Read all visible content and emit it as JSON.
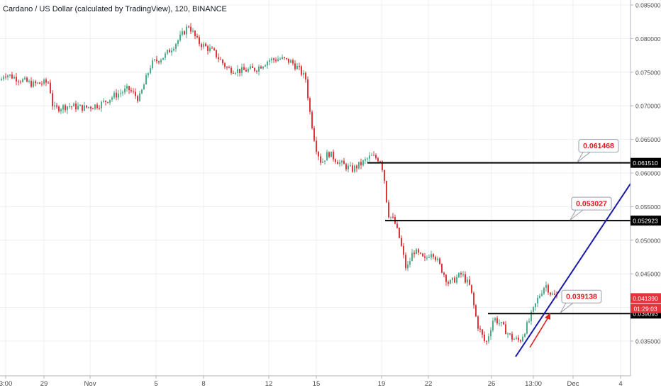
{
  "header": {
    "title": "Cardano / US Dollar (calculated by TradingView), 120, BINANCE"
  },
  "chart_data": {
    "type": "candlestick",
    "title": "Cardano / US Dollar (calculated by TradingView), 120, BINANCE",
    "xlabel": "",
    "ylabel": "",
    "ylim": [
      0.0315,
      0.0855
    ],
    "grid": true,
    "x_tick_labels": [
      "3:00",
      "29",
      "Nov",
      "5",
      "8",
      "12",
      "15",
      "19",
      "22",
      "26",
      "13:00",
      "Dec",
      "4"
    ],
    "y_tick_labels": [
      "0.085000",
      "0.080000",
      "0.075000",
      "0.070000",
      "0.065000",
      "0.060000",
      "0.055000",
      "0.050000",
      "0.045000",
      "0.040000",
      "0.035000"
    ],
    "price_path": [
      [
        0,
        0.0738
      ],
      [
        5,
        0.0748
      ],
      [
        20,
        0.0742
      ],
      [
        45,
        0.0732
      ],
      [
        68,
        0.0735
      ],
      [
        74,
        0.0695
      ],
      [
        95,
        0.07
      ],
      [
        118,
        0.0697
      ],
      [
        140,
        0.0702
      ],
      [
        160,
        0.0715
      ],
      [
        180,
        0.0725
      ],
      [
        195,
        0.071
      ],
      [
        212,
        0.0762
      ],
      [
        232,
        0.0775
      ],
      [
        252,
        0.08
      ],
      [
        265,
        0.082
      ],
      [
        278,
        0.0795
      ],
      [
        300,
        0.078
      ],
      [
        320,
        0.0755
      ],
      [
        340,
        0.0752
      ],
      [
        360,
        0.0755
      ],
      [
        378,
        0.0768
      ],
      [
        395,
        0.077
      ],
      [
        410,
        0.0765
      ],
      [
        420,
        0.0755
      ],
      [
        430,
        0.074
      ],
      [
        436,
        0.069
      ],
      [
        444,
        0.064
      ],
      [
        452,
        0.0615
      ],
      [
        462,
        0.063
      ],
      [
        478,
        0.0615
      ],
      [
        495,
        0.0605
      ],
      [
        510,
        0.0615
      ],
      [
        522,
        0.0625
      ],
      [
        535,
        0.062
      ],
      [
        540,
        0.06
      ],
      [
        546,
        0.054
      ],
      [
        555,
        0.0528
      ],
      [
        563,
        0.05
      ],
      [
        572,
        0.0455
      ],
      [
        582,
        0.0485
      ],
      [
        598,
        0.047
      ],
      [
        608,
        0.0485
      ],
      [
        620,
        0.046
      ],
      [
        632,
        0.0435
      ],
      [
        650,
        0.045
      ],
      [
        662,
        0.043
      ],
      [
        672,
        0.0375
      ],
      [
        684,
        0.0345
      ],
      [
        695,
        0.0385
      ],
      [
        705,
        0.0375
      ],
      [
        720,
        0.0355
      ],
      [
        732,
        0.035
      ],
      [
        745,
        0.038
      ],
      [
        758,
        0.0415
      ],
      [
        768,
        0.0435
      ],
      [
        776,
        0.042
      ],
      [
        785,
        0.0415
      ]
    ],
    "horizontal_levels": [
      {
        "value": 0.06151,
        "label": "0.061510",
        "x_start": 518
      },
      {
        "value": 0.052923,
        "label": "0.052923",
        "x_start": 543
      },
      {
        "value": 0.039093,
        "label": "0.039093",
        "x_start": 688
      }
    ],
    "callouts": [
      {
        "text": "0.061468",
        "level": 0.06151
      },
      {
        "text": "0.053027",
        "level": 0.052923
      },
      {
        "text": "0.039138",
        "level": 0.039093
      }
    ],
    "current_price": {
      "value": 0.04139,
      "label": "0.041390",
      "countdown": "01:29:03"
    },
    "colors": {
      "up": "#4caf89",
      "down": "#e3343b",
      "level_line": "#000000",
      "trendline": "#1a1aa8",
      "arrow": "#e02020",
      "callout_text": "#e3141b",
      "grid": "#eceff2"
    }
  }
}
